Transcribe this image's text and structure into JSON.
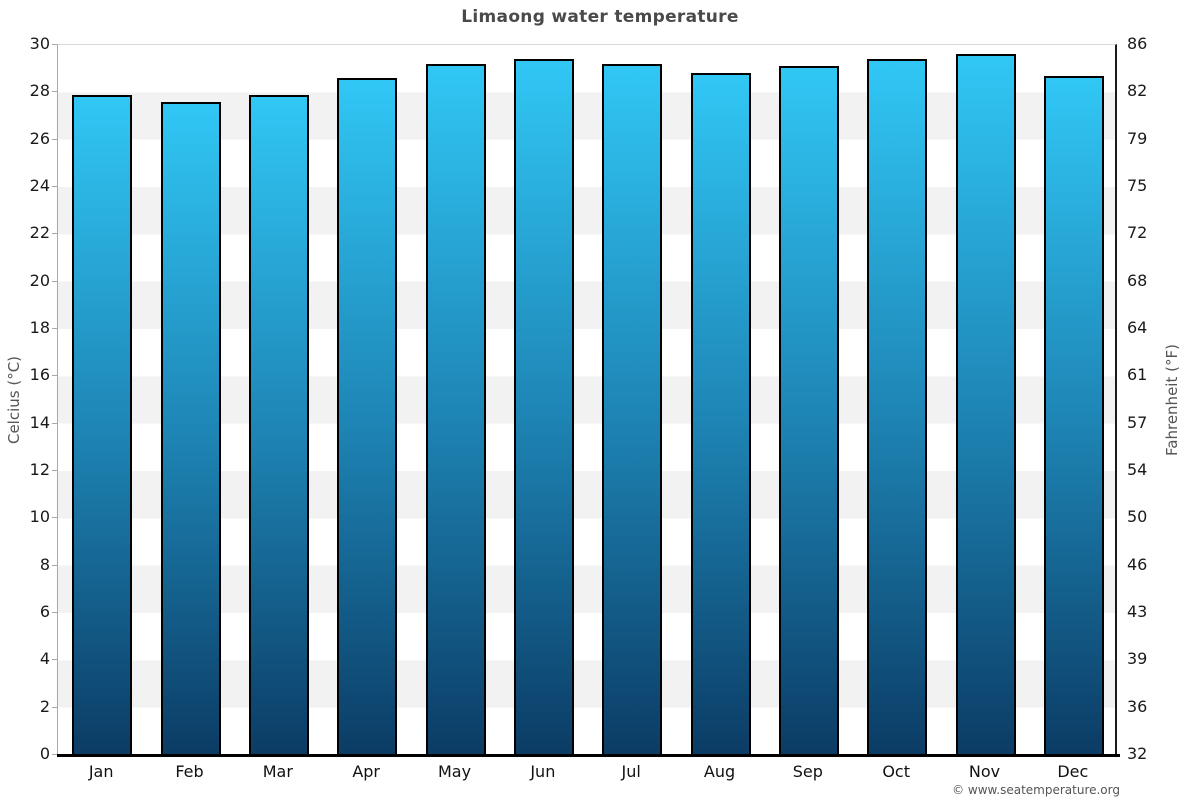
{
  "chart_data": {
    "type": "bar",
    "title": "Limaong water temperature",
    "categories": [
      "Jan",
      "Feb",
      "Mar",
      "Apr",
      "May",
      "Jun",
      "Jul",
      "Aug",
      "Sep",
      "Oct",
      "Nov",
      "Dec"
    ],
    "series": [
      {
        "name": "Water temperature (°C)",
        "values": [
          27.9,
          27.6,
          27.9,
          28.6,
          29.2,
          29.4,
          29.2,
          28.8,
          29.1,
          29.4,
          29.6,
          28.7
        ]
      }
    ],
    "xlabel": "",
    "ylabel_left": "Celcius (°C)",
    "ylabel_right": "Fahrenheit (°F)",
    "ylim_celsius": [
      0,
      30
    ],
    "yticks_celsius": [
      30,
      28,
      26,
      24,
      22,
      20,
      18,
      16,
      14,
      12,
      10,
      8,
      6,
      4,
      2,
      0
    ],
    "yticks_fahrenheit": [
      86,
      82,
      79,
      75,
      72,
      68,
      64,
      61,
      57,
      54,
      50,
      46,
      43,
      39,
      36,
      32
    ],
    "grid": "alternating horizontal bands every 2°C",
    "legend_position": "none",
    "colors": {
      "bar_gradient_top": "#31C7F5",
      "bar_gradient_mid": "#1E86B6",
      "bar_gradient_bottom": "#0B3C65",
      "bar_border": "#000000",
      "band_gray": "#f2f2f2",
      "band_white": "#ffffff",
      "title_text": "#4a4a4a",
      "tick_text": "#1a1a1a",
      "axis_line_left": "#a8a8a8",
      "axis_line_right": "#1a1a1a",
      "baseline": "#000000"
    }
  },
  "footer": {
    "credit": "© www.seatemperature.org"
  }
}
